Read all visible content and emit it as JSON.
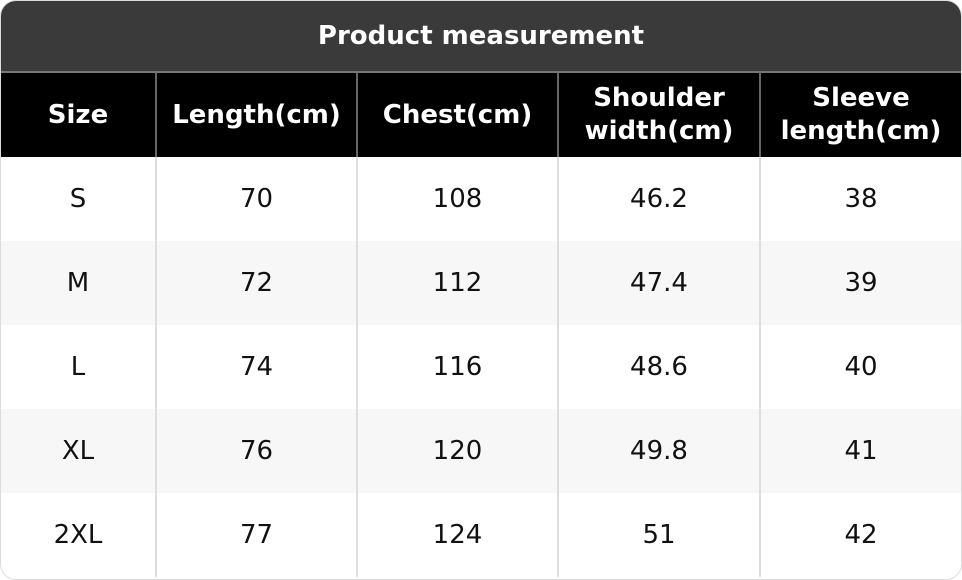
{
  "title": "Product measurement",
  "table": {
    "header": [
      "Size",
      "Length(cm)",
      "Chest(cm)",
      "Shoulder width(cm)",
      "Sleeve length(cm)"
    ],
    "rows": [
      [
        "S",
        "70",
        "108",
        "46.2",
        "38"
      ],
      [
        "M",
        "72",
        "112",
        "47.4",
        "39"
      ],
      [
        "L",
        "74",
        "116",
        "48.6",
        "40"
      ],
      [
        "XL",
        "76",
        "120",
        "49.8",
        "41"
      ],
      [
        "2XL",
        "77",
        "124",
        "51",
        "42"
      ]
    ]
  }
}
